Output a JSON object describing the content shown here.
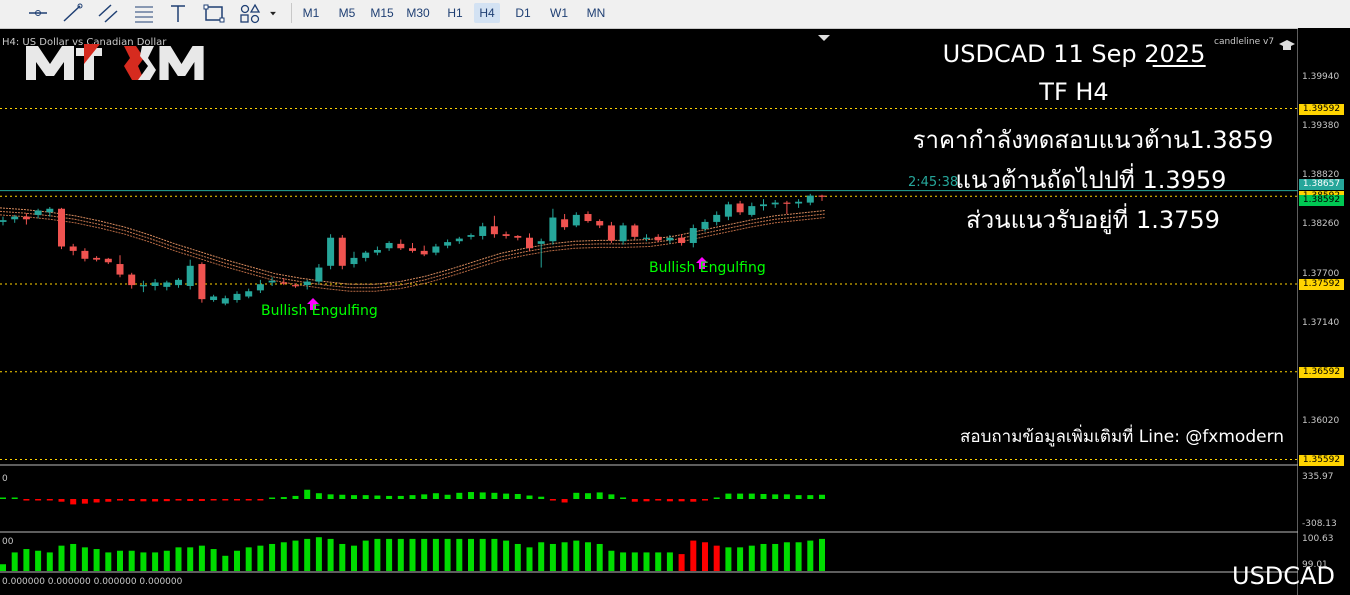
{
  "toolbar": {
    "tools": [
      "crosshair-icon",
      "horizontal-line-icon",
      "trendline-icon",
      "channel-icon",
      "fibonacci-icon",
      "text-tool-icon",
      "rectangle-icon",
      "shapes-icon",
      "dropdown-arrow-icon"
    ],
    "timeframes": [
      "M1",
      "M5",
      "M15",
      "M30",
      "H1",
      "H4",
      "D1",
      "W1",
      "MN"
    ],
    "active_timeframe": "H4"
  },
  "chart": {
    "header_label": "H4: US Dollar vs Canadian Dollar",
    "indicator_label": "candleline v7",
    "countdown": "2:45:38",
    "logo": "MT XM",
    "bottom_symbol": "USDCAD",
    "bottom_values": "0.000000 0.000000 0.000000 0.000000"
  },
  "annotation": {
    "line1": "USDCAD  11 Sep  2025",
    "line2": "TF H4",
    "line3": "ราคากำลังทดสอบแนวต้าน1.3859",
    "line4": "แนวต้านถัดไปปที่  1.3959",
    "line5": "ส่วนแนวรับอยู่ที่ 1.3759",
    "contact": "สอบถามข้อมูลเพิ่มเติมที่ Line: @fxmodern"
  },
  "patterns": [
    {
      "label": "Bullish Engulfing"
    },
    {
      "label": "Bullish Engulfing"
    }
  ],
  "price_scale": {
    "ticks": [
      "1.39940",
      "1.39380",
      "1.38820",
      "1.38260",
      "1.37700",
      "1.37140",
      "1.36020"
    ],
    "levels": [
      "1.39592",
      "1.38592",
      "1.37592",
      "1.36592",
      "1.35592"
    ],
    "current_price": "1.38657",
    "bid_price": "1.38592"
  },
  "osc1": {
    "max_label": "335.97",
    "min_label": "-308.13",
    "left_label": "0"
  },
  "osc2": {
    "max_label": "100.63",
    "mid_label": "99.01",
    "left_label": "00"
  },
  "colors": {
    "bull": "#26a69a",
    "bear": "#ef5350",
    "level": "#ffd400",
    "pattern_text": "#00ff00",
    "arrow": "#ff00ff",
    "hist_up": "#00dd00",
    "hist_down": "#ff0000"
  },
  "chart_data": {
    "type": "candlestick",
    "candles": [
      {
        "o": 1.383,
        "h": 1.3836,
        "l": 1.3826,
        "c": 1.3832
      },
      {
        "o": 1.3833,
        "h": 1.3838,
        "l": 1.3829,
        "c": 1.3836
      },
      {
        "o": 1.3836,
        "h": 1.384,
        "l": 1.3827,
        "c": 1.3833
      },
      {
        "o": 1.3838,
        "h": 1.3845,
        "l": 1.3834,
        "c": 1.3843
      },
      {
        "o": 1.3841,
        "h": 1.3847,
        "l": 1.3836,
        "c": 1.3845
      },
      {
        "o": 1.3845,
        "h": 1.3846,
        "l": 1.3799,
        "c": 1.3802
      },
      {
        "o": 1.3802,
        "h": 1.3805,
        "l": 1.3792,
        "c": 1.3797
      },
      {
        "o": 1.3797,
        "h": 1.38,
        "l": 1.3785,
        "c": 1.3788
      },
      {
        "o": 1.3789,
        "h": 1.3791,
        "l": 1.3785,
        "c": 1.3787
      },
      {
        "o": 1.3788,
        "h": 1.3789,
        "l": 1.3782,
        "c": 1.3784
      },
      {
        "o": 1.3782,
        "h": 1.3792,
        "l": 1.3767,
        "c": 1.377
      },
      {
        "o": 1.377,
        "h": 1.3772,
        "l": 1.3754,
        "c": 1.3758
      },
      {
        "o": 1.3758,
        "h": 1.3763,
        "l": 1.375,
        "c": 1.3758
      },
      {
        "o": 1.3757,
        "h": 1.3765,
        "l": 1.3752,
        "c": 1.3761
      },
      {
        "o": 1.3756,
        "h": 1.3763,
        "l": 1.3752,
        "c": 1.3761
      },
      {
        "o": 1.3758,
        "h": 1.3766,
        "l": 1.3755,
        "c": 1.3764
      },
      {
        "o": 1.3757,
        "h": 1.3787,
        "l": 1.3753,
        "c": 1.378
      },
      {
        "o": 1.3782,
        "h": 1.3784,
        "l": 1.3738,
        "c": 1.3742
      },
      {
        "o": 1.3741,
        "h": 1.3747,
        "l": 1.3739,
        "c": 1.3745
      },
      {
        "o": 1.3737,
        "h": 1.3746,
        "l": 1.3735,
        "c": 1.3743
      },
      {
        "o": 1.3741,
        "h": 1.3751,
        "l": 1.3738,
        "c": 1.3748
      },
      {
        "o": 1.3745,
        "h": 1.3754,
        "l": 1.3743,
        "c": 1.3751
      },
      {
        "o": 1.3752,
        "h": 1.3764,
        "l": 1.3749,
        "c": 1.3759
      },
      {
        "o": 1.3761,
        "h": 1.3767,
        "l": 1.3757,
        "c": 1.3763
      },
      {
        "o": 1.3761,
        "h": 1.3766,
        "l": 1.3758,
        "c": 1.376
      },
      {
        "o": 1.3758,
        "h": 1.376,
        "l": 1.3755,
        "c": 1.3757
      },
      {
        "o": 1.3758,
        "h": 1.3764,
        "l": 1.3753,
        "c": 1.3762
      },
      {
        "o": 1.3762,
        "h": 1.3782,
        "l": 1.3759,
        "c": 1.3778
      },
      {
        "o": 1.378,
        "h": 1.3816,
        "l": 1.3776,
        "c": 1.3812
      },
      {
        "o": 1.3812,
        "h": 1.3815,
        "l": 1.3776,
        "c": 1.378
      },
      {
        "o": 1.3782,
        "h": 1.3796,
        "l": 1.3778,
        "c": 1.3789
      },
      {
        "o": 1.3789,
        "h": 1.3797,
        "l": 1.3785,
        "c": 1.3795
      },
      {
        "o": 1.3795,
        "h": 1.3802,
        "l": 1.3792,
        "c": 1.3798
      },
      {
        "o": 1.38,
        "h": 1.3808,
        "l": 1.3797,
        "c": 1.3806
      },
      {
        "o": 1.3805,
        "h": 1.381,
        "l": 1.3798,
        "c": 1.38
      },
      {
        "o": 1.38,
        "h": 1.3806,
        "l": 1.3795,
        "c": 1.3797
      },
      {
        "o": 1.3797,
        "h": 1.3803,
        "l": 1.3791,
        "c": 1.3793
      },
      {
        "o": 1.3795,
        "h": 1.3805,
        "l": 1.3792,
        "c": 1.3802
      },
      {
        "o": 1.3803,
        "h": 1.381,
        "l": 1.38,
        "c": 1.3807
      },
      {
        "o": 1.3808,
        "h": 1.3813,
        "l": 1.3805,
        "c": 1.3811
      },
      {
        "o": 1.3813,
        "h": 1.3817,
        "l": 1.381,
        "c": 1.3815
      },
      {
        "o": 1.3814,
        "h": 1.3829,
        "l": 1.381,
        "c": 1.3825
      },
      {
        "o": 1.3825,
        "h": 1.3837,
        "l": 1.3812,
        "c": 1.3816
      },
      {
        "o": 1.3816,
        "h": 1.3819,
        "l": 1.3811,
        "c": 1.3814
      },
      {
        "o": 1.3814,
        "h": 1.3815,
        "l": 1.3809,
        "c": 1.3812
      },
      {
        "o": 1.3812,
        "h": 1.3817,
        "l": 1.3797,
        "c": 1.38
      },
      {
        "o": 1.3805,
        "h": 1.3811,
        "l": 1.3778,
        "c": 1.3808
      },
      {
        "o": 1.3808,
        "h": 1.3845,
        "l": 1.3804,
        "c": 1.3835
      },
      {
        "o": 1.3833,
        "h": 1.3839,
        "l": 1.3821,
        "c": 1.3824
      },
      {
        "o": 1.3826,
        "h": 1.3841,
        "l": 1.3824,
        "c": 1.3838
      },
      {
        "o": 1.3839,
        "h": 1.3842,
        "l": 1.3829,
        "c": 1.3831
      },
      {
        "o": 1.3831,
        "h": 1.3833,
        "l": 1.3823,
        "c": 1.3826
      },
      {
        "o": 1.3826,
        "h": 1.383,
        "l": 1.3806,
        "c": 1.3809
      },
      {
        "o": 1.3808,
        "h": 1.3829,
        "l": 1.3804,
        "c": 1.3826
      },
      {
        "o": 1.3826,
        "h": 1.3828,
        "l": 1.381,
        "c": 1.3813
      },
      {
        "o": 1.3811,
        "h": 1.3816,
        "l": 1.3808,
        "c": 1.3812
      },
      {
        "o": 1.3813,
        "h": 1.3816,
        "l": 1.3807,
        "c": 1.3809
      },
      {
        "o": 1.3809,
        "h": 1.3815,
        "l": 1.3805,
        "c": 1.3812
      },
      {
        "o": 1.3812,
        "h": 1.3816,
        "l": 1.3803,
        "c": 1.3806
      },
      {
        "o": 1.3806,
        "h": 1.3827,
        "l": 1.3801,
        "c": 1.3823
      },
      {
        "o": 1.3822,
        "h": 1.3833,
        "l": 1.3819,
        "c": 1.383
      },
      {
        "o": 1.383,
        "h": 1.3842,
        "l": 1.3826,
        "c": 1.3838
      },
      {
        "o": 1.3836,
        "h": 1.3853,
        "l": 1.3832,
        "c": 1.385
      },
      {
        "o": 1.3851,
        "h": 1.3854,
        "l": 1.3838,
        "c": 1.3841
      },
      {
        "o": 1.3838,
        "h": 1.3852,
        "l": 1.3836,
        "c": 1.3848
      },
      {
        "o": 1.3848,
        "h": 1.3856,
        "l": 1.3843,
        "c": 1.385
      },
      {
        "o": 1.385,
        "h": 1.3855,
        "l": 1.3846,
        "c": 1.3852
      },
      {
        "o": 1.3852,
        "h": 1.3854,
        "l": 1.3839,
        "c": 1.3851
      },
      {
        "o": 1.3851,
        "h": 1.3856,
        "l": 1.3846,
        "c": 1.3853
      },
      {
        "o": 1.3852,
        "h": 1.3862,
        "l": 1.3849,
        "c": 1.386
      },
      {
        "o": 1.386,
        "h": 1.3861,
        "l": 1.3854,
        "c": 1.3859
      }
    ],
    "ma_bands": [
      {
        "name": "",
        "values": [
          1.3846,
          1.3844,
          1.3841,
          1.3837,
          1.3831,
          1.3824,
          1.3815,
          1.3805,
          1.3796,
          1.3787,
          1.3779,
          1.3771,
          1.3766,
          1.3762,
          1.3759,
          1.3759,
          1.3762,
          1.3768,
          1.3776,
          1.3785,
          1.3794,
          1.38,
          1.3805,
          1.3808,
          1.3809,
          1.3809,
          1.381,
          1.3814,
          1.382,
          1.3826,
          1.3832,
          1.3837,
          1.384,
          1.3843
        ]
      },
      {
        "name": "",
        "values": [
          1.3842,
          1.384,
          1.3837,
          1.3833,
          1.3827,
          1.382,
          1.3811,
          1.3801,
          1.3792,
          1.3783,
          1.3775,
          1.3767,
          1.3762,
          1.3758,
          1.3755,
          1.3755,
          1.3758,
          1.3764,
          1.3772,
          1.3781,
          1.379,
          1.3796,
          1.3801,
          1.3804,
          1.3805,
          1.3805,
          1.3806,
          1.381,
          1.3816,
          1.3822,
          1.3828,
          1.3833,
          1.3836,
          1.3839
        ]
      },
      {
        "name": "",
        "values": [
          1.3838,
          1.3836,
          1.3833,
          1.3829,
          1.3823,
          1.3816,
          1.3807,
          1.3797,
          1.3788,
          1.3779,
          1.3771,
          1.3763,
          1.3758,
          1.3754,
          1.3751,
          1.3751,
          1.3754,
          1.376,
          1.3768,
          1.3777,
          1.3786,
          1.3792,
          1.3797,
          1.38,
          1.3801,
          1.3801,
          1.3802,
          1.3806,
          1.3812,
          1.3818,
          1.3824,
          1.3829,
          1.3832,
          1.3835
        ]
      }
    ],
    "osc1_values": [
      0,
      0,
      -20,
      -8,
      -15,
      -35,
      -70,
      -60,
      -45,
      -35,
      -20,
      -25,
      -30,
      -32,
      -28,
      -20,
      -25,
      -25,
      -15,
      -12,
      -8,
      -5,
      -2,
      10,
      25,
      40,
      120,
      75,
      60,
      55,
      50,
      50,
      45,
      40,
      40,
      50,
      60,
      75,
      55,
      80,
      90,
      85,
      80,
      70,
      65,
      45,
      30,
      -20,
      -45,
      80,
      75,
      85,
      60,
      20,
      -35,
      -30,
      -20,
      -30,
      -30,
      -35,
      -20,
      20,
      70,
      70,
      70,
      65,
      60,
      60,
      50,
      50,
      55
    ],
    "osc1_range": [
      -308.13,
      335.97
    ],
    "osc2_values": [
      20,
      55,
      65,
      60,
      55,
      75,
      80,
      70,
      65,
      55,
      60,
      60,
      55,
      55,
      60,
      70,
      70,
      75,
      65,
      45,
      60,
      70,
      75,
      80,
      85,
      90,
      95,
      100,
      95,
      80,
      75,
      90,
      95,
      95,
      95,
      95,
      95,
      95,
      95,
      95,
      95,
      95,
      95,
      90,
      80,
      70,
      85,
      80,
      85,
      90,
      85,
      80,
      60,
      55,
      55,
      55,
      55,
      55,
      50,
      90,
      85,
      75,
      70,
      70,
      75,
      80,
      80,
      85,
      85,
      90,
      95
    ],
    "osc2_down_indices": [
      58,
      59,
      60,
      61
    ],
    "osc2_range": [
      0,
      100.63
    ]
  }
}
